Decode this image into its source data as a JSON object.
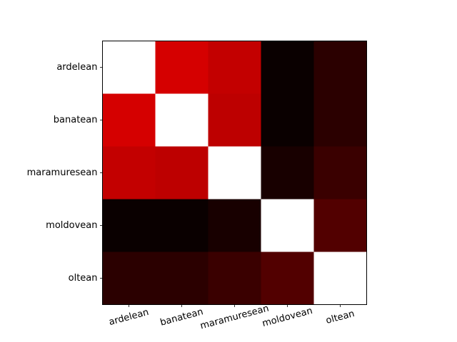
{
  "chart_data": {
    "type": "heatmap",
    "title": "",
    "xlabel": "",
    "ylabel": "",
    "x_categories": [
      "ardelean",
      "banatean",
      "maramuresean",
      "moldovean",
      "oltean"
    ],
    "y_categories": [
      "ardelean",
      "banatean",
      "maramuresean",
      "moldovean",
      "oltean"
    ],
    "colormap": "hot",
    "value_range": [
      0,
      1
    ],
    "diagonal_color": "#ffffff",
    "values": [
      [
        1.0,
        0.32,
        0.28,
        0.015,
        0.07
      ],
      [
        0.32,
        1.0,
        0.28,
        0.015,
        0.07
      ],
      [
        0.28,
        0.28,
        1.0,
        0.04,
        0.09
      ],
      [
        0.015,
        0.015,
        0.04,
        1.0,
        0.13
      ],
      [
        0.07,
        0.07,
        0.09,
        0.13,
        1.0
      ]
    ],
    "colors": [
      [
        "#ffffff",
        "#d50000",
        "#c30000",
        "#0a0000",
        "#2b0000"
      ],
      [
        "#d50000",
        "#ffffff",
        "#bd0000",
        "#0a0000",
        "#2b0000"
      ],
      [
        "#c30000",
        "#bd0000",
        "#ffffff",
        "#180000",
        "#3a0000"
      ],
      [
        "#0a0000",
        "#0a0000",
        "#180000",
        "#ffffff",
        "#520000"
      ],
      [
        "#2b0000",
        "#2b0000",
        "#3a0000",
        "#520000",
        "#ffffff"
      ]
    ],
    "grid": false,
    "x_tick_rotation_deg": 15
  }
}
